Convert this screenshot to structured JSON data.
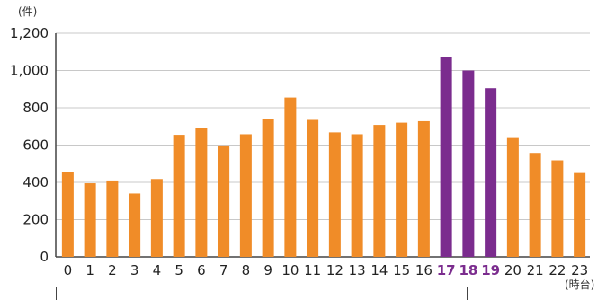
{
  "chart_data": {
    "type": "bar",
    "ylabel": "(件)",
    "xlabel": "(時台)",
    "ylim": [
      0,
      1200
    ],
    "yticks": [
      "0",
      "200",
      "400",
      "600",
      "800",
      "1,000",
      "1,200"
    ],
    "categories": [
      "0",
      "1",
      "2",
      "3",
      "4",
      "5",
      "6",
      "7",
      "8",
      "9",
      "10",
      "11",
      "12",
      "13",
      "14",
      "15",
      "16",
      "17",
      "18",
      "19",
      "20",
      "21",
      "22",
      "23"
    ],
    "values": [
      455,
      395,
      410,
      340,
      418,
      655,
      690,
      598,
      658,
      738,
      855,
      735,
      668,
      658,
      708,
      720,
      728,
      1070,
      1000,
      905,
      638,
      558,
      518,
      450
    ],
    "highlight": [
      "17",
      "18",
      "19"
    ],
    "colors": {
      "normal": "#F08C28",
      "highlight": "#7B2C8E"
    }
  }
}
